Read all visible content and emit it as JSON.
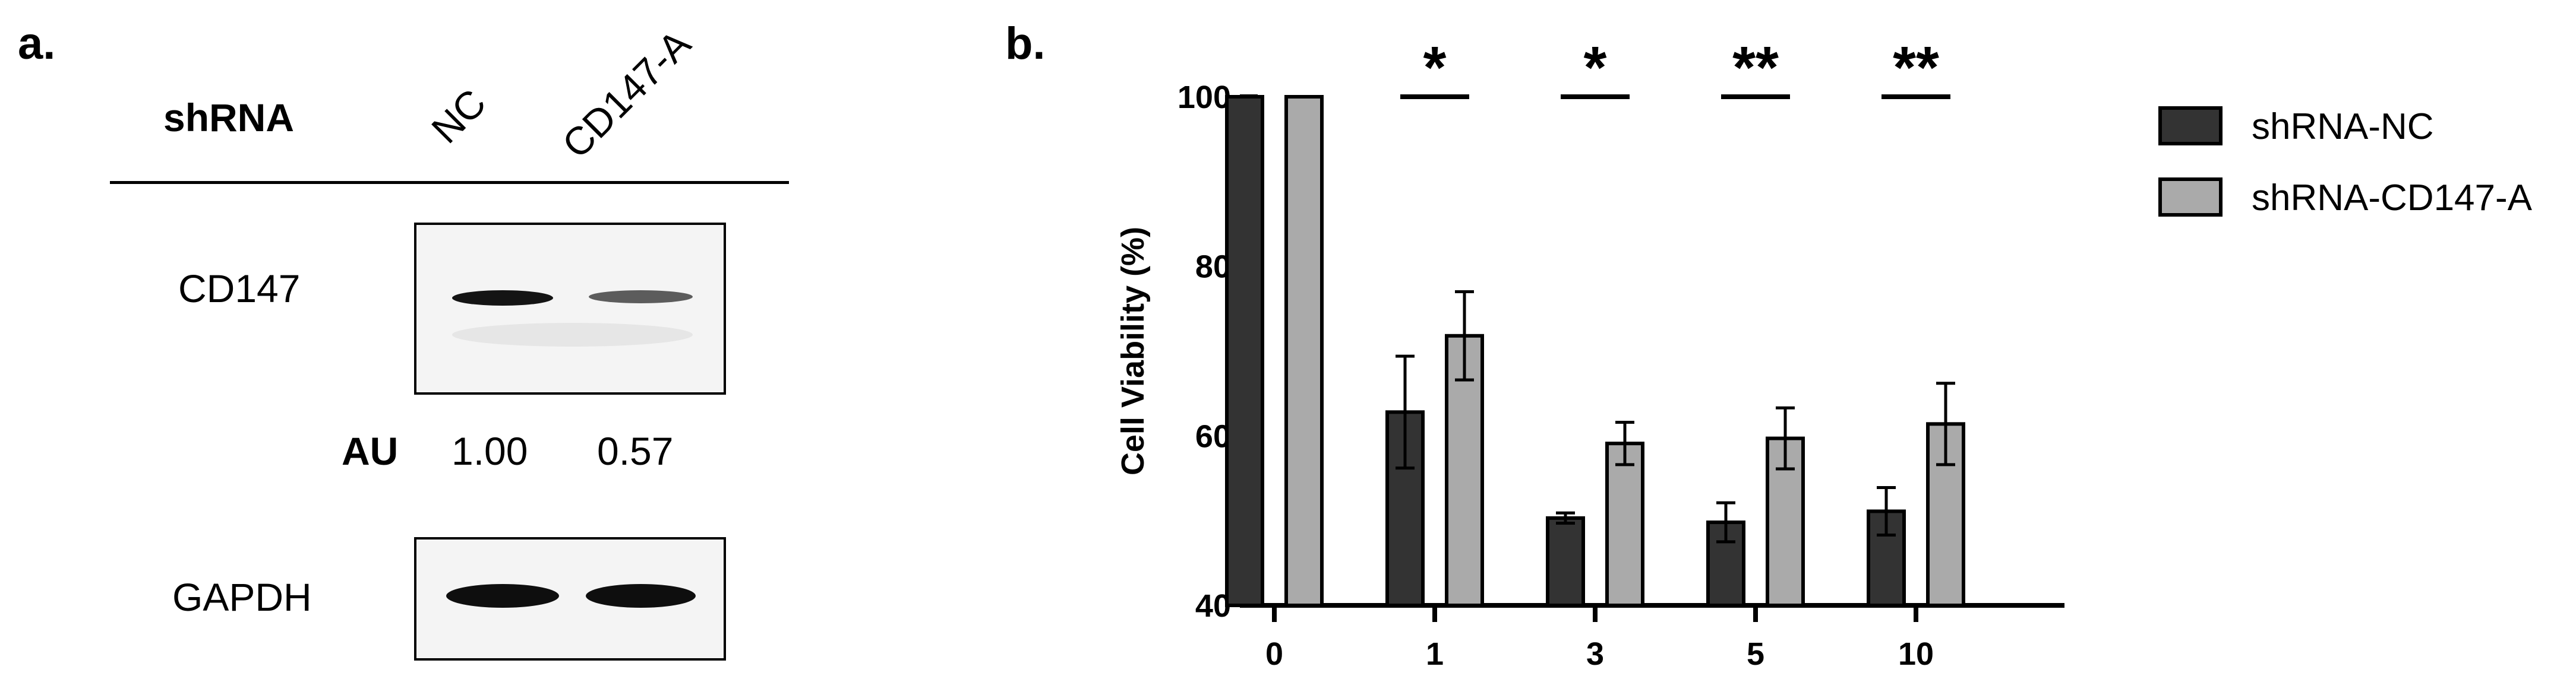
{
  "panel_a": {
    "label": "a.",
    "shrna_label": "shRNA",
    "lanes": [
      "NC",
      "CD147-A"
    ],
    "blots": [
      {
        "protein": "CD147",
        "band_intensity": [
          1.0,
          0.57
        ]
      },
      {
        "protein": "GAPDH",
        "band_intensity": [
          1.0,
          1.0
        ]
      }
    ],
    "au_label": "AU",
    "au_values": [
      "1.00",
      "0.57"
    ]
  },
  "panel_b": {
    "label": "b.",
    "colors": {
      "shRNA-NC": "#333333",
      "shRNA-CD147-A": "#aaaaaa"
    }
  },
  "chart_data": {
    "type": "bar",
    "categories": [
      "0",
      "1",
      "3",
      "5",
      "10"
    ],
    "series": [
      {
        "name": "shRNA-NC",
        "values": [
          100,
          62.8,
          50.3,
          49.8,
          51.1
        ],
        "errors": [
          0,
          6.6,
          0.6,
          2.3,
          2.8
        ]
      },
      {
        "name": "shRNA-CD147-A",
        "values": [
          100,
          71.8,
          59.1,
          59.7,
          61.4
        ],
        "errors": [
          0,
          5.2,
          2.5,
          3.6,
          4.8
        ]
      }
    ],
    "significance": [
      "",
      "*",
      "*",
      "**",
      "**"
    ],
    "xlabel": "",
    "ylabel": "Cell Viability (%)",
    "ylim": [
      40,
      100
    ],
    "yticks": [
      40,
      60,
      80,
      100
    ],
    "legend_position": "right",
    "grid": false
  }
}
